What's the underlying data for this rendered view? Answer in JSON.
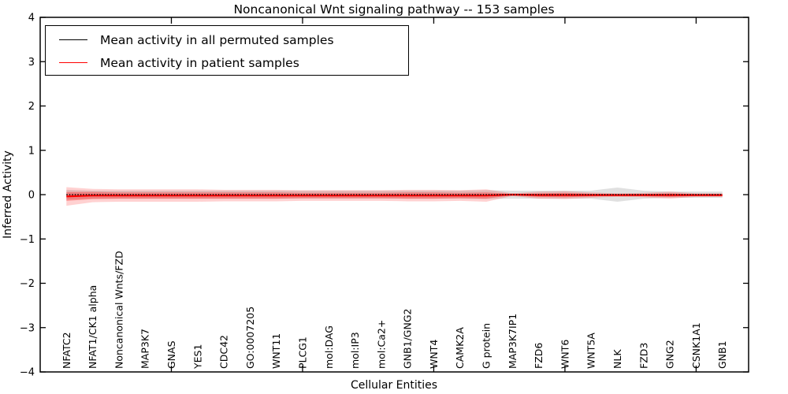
{
  "figure": {
    "title": "Noncanonical Wnt signaling pathway -- 153 samples",
    "xlabel": "Cellular Entities",
    "ylabel": "Inferred Activity"
  },
  "legend": {
    "items": [
      {
        "label": "Mean activity in all permuted samples",
        "color": "#000000"
      },
      {
        "label": "Mean activity in patient samples",
        "color": "#ff0000"
      }
    ]
  },
  "chart_data": {
    "type": "line",
    "title": "Noncanonical Wnt signaling pathway -- 153 samples",
    "xlabel": "Cellular Entities",
    "ylabel": "Inferred Activity",
    "ylim": [
      -4,
      4
    ],
    "x_axis_range": [
      0,
      27
    ],
    "x_major_ticks": [
      5,
      10,
      15,
      20,
      25
    ],
    "y_ticks": [
      -4,
      -3,
      -2,
      -1,
      0,
      1,
      2,
      3,
      4
    ],
    "y_tick_labels": [
      "−4",
      "−3",
      "−2",
      "−1",
      "0",
      "1",
      "2",
      "3",
      "4"
    ],
    "grid": false,
    "legend_position": "upper left",
    "categories": [
      "NFATC2",
      "NFAT1/CK1 alpha",
      "Noncanonical Wnts/FZD",
      "MAP3K7",
      "GNAS",
      "YES1",
      "CDC42",
      "GO:0007205",
      "WNT11",
      "PLCG1",
      "mol:DAG",
      "mol:IP3",
      "mol:Ca2+",
      "GNB1/GNG2",
      "WNT4",
      "CAMK2A",
      "G protein",
      "MAP3K7IP1",
      "FZD6",
      "WNT6",
      "WNT5A",
      "NLK",
      "FZD3",
      "GNG2",
      "CSNK1A1",
      "GNB1"
    ],
    "series": [
      {
        "name": "Mean activity in all permuted samples",
        "color": "#000000",
        "style": "dotted",
        "values": [
          0,
          0,
          0,
          0,
          0,
          0,
          0,
          0,
          0,
          0,
          0,
          0,
          0,
          0,
          0,
          0,
          0,
          0,
          0,
          0,
          0,
          0,
          0,
          0,
          0,
          0
        ]
      },
      {
        "name": "Mean activity in patient samples",
        "color": "#ff0000",
        "style": "solid",
        "values": [
          -0.04,
          -0.02,
          -0.02,
          -0.02,
          -0.02,
          -0.02,
          -0.02,
          -0.02,
          -0.02,
          -0.02,
          -0.02,
          -0.02,
          -0.02,
          -0.02,
          -0.02,
          -0.02,
          -0.02,
          0,
          -0.01,
          -0.01,
          -0.01,
          -0.01,
          -0.01,
          -0.01,
          -0.01,
          -0.01
        ]
      }
    ],
    "bands": [
      {
        "id": "permuted-band",
        "name": "permuted samples spread",
        "color": "#999999",
        "opacity": 0.3,
        "center_series": 0,
        "half_widths": [
          0.11,
          0.09,
          0.09,
          0.09,
          0.09,
          0.09,
          0.09,
          0.09,
          0.09,
          0.09,
          0.09,
          0.09,
          0.09,
          0.09,
          0.09,
          0.09,
          0.1,
          0.09,
          0.09,
          0.09,
          0.09,
          0.16,
          0.09,
          0.07,
          0.07,
          0.07
        ]
      },
      {
        "id": "patient-band-outer",
        "name": "patient samples spread (outer)",
        "color": "#ff0000",
        "opacity": 0.18,
        "center_series": 1,
        "half_widths": [
          0.21,
          0.15,
          0.14,
          0.14,
          0.14,
          0.14,
          0.13,
          0.13,
          0.13,
          0.12,
          0.12,
          0.12,
          0.12,
          0.13,
          0.13,
          0.12,
          0.14,
          0.03,
          0.08,
          0.09,
          0.06,
          0.04,
          0.05,
          0.08,
          0.04,
          0.04
        ]
      },
      {
        "id": "patient-band-inner",
        "name": "patient samples spread (inner)",
        "color": "#ff0000",
        "opacity": 0.3,
        "center_series": 1,
        "half_widths": [
          0.1,
          0.08,
          0.07,
          0.07,
          0.07,
          0.07,
          0.07,
          0.07,
          0.07,
          0.06,
          0.06,
          0.06,
          0.06,
          0.07,
          0.07,
          0.06,
          0.07,
          0.015,
          0.04,
          0.05,
          0.03,
          0.02,
          0.025,
          0.04,
          0.02,
          0.02
        ]
      }
    ]
  }
}
